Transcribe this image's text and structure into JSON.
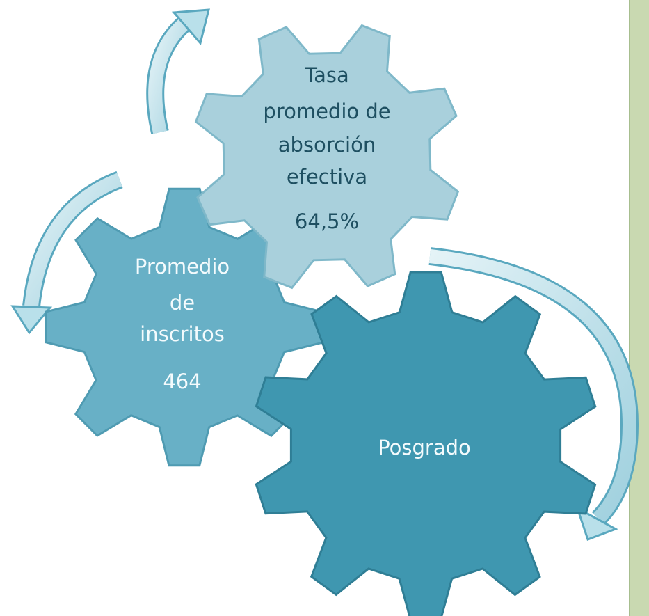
{
  "nodes": [
    {
      "label_lines": [
        "Tasa",
        "promedio de",
        "absorción",
        "efectiva"
      ],
      "value": "64,5%"
    },
    {
      "label_lines": [
        "Promedio",
        "de",
        "inscritos"
      ],
      "value": "464"
    },
    {
      "label_lines": [
        "Posgrado"
      ]
    }
  ]
}
